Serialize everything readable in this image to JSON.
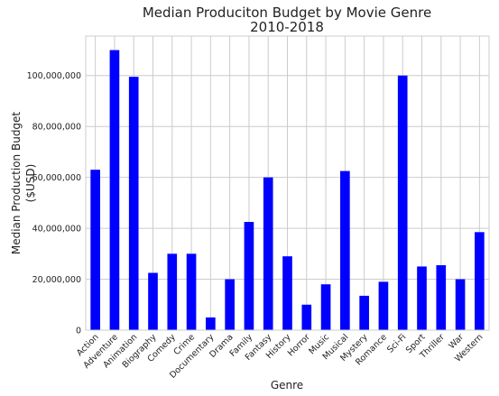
{
  "chart_data": {
    "type": "bar",
    "title": "Median Produciton Budget by Movie Genre",
    "subtitle": "2010-2018",
    "xlabel": "Genre",
    "ylabel_line1": "Median Production Budget",
    "ylabel_line2": "($USD)",
    "categories": [
      "Action",
      "Adventure",
      "Animation",
      "Biography",
      "Comedy",
      "Crime",
      "Documentary",
      "Drama",
      "Family",
      "Fantasy",
      "History",
      "Horror",
      "Music",
      "Musical",
      "Mystery",
      "Romance",
      "Sci-Fi",
      "Sport",
      "Thriller",
      "War",
      "Western"
    ],
    "values": [
      63000000,
      110000000,
      99500000,
      22500000,
      30000000,
      30000000,
      5000000,
      20000000,
      42500000,
      60000000,
      29000000,
      10000000,
      18000000,
      62500000,
      13500000,
      19000000,
      100000000,
      25000000,
      25500000,
      20000000,
      38500000
    ],
    "ylim": [
      0,
      115500000
    ],
    "yticks": [
      0,
      20000000,
      40000000,
      60000000,
      80000000,
      100000000
    ],
    "ytick_labels": [
      "0",
      "20,000,000",
      "40,000,000",
      "60,000,000",
      "80,000,000",
      "100,000,000"
    ],
    "grid": true,
    "bar_color": "#0000ff",
    "grid_color": "#cccccc",
    "background": "#ffffff"
  }
}
